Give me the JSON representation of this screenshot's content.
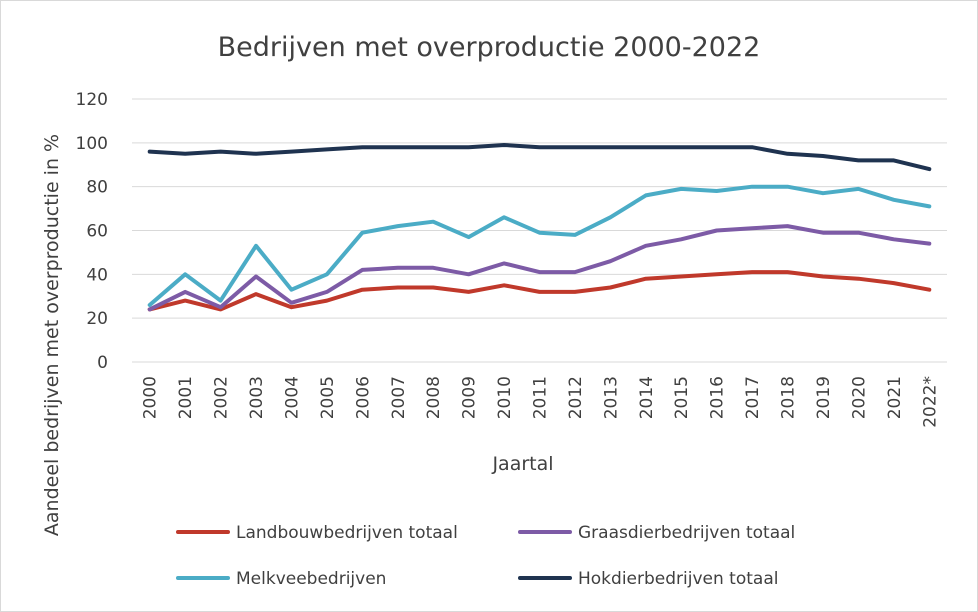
{
  "chart_data": {
    "type": "line",
    "title": "Bedrijven met overproductie 2000-2022",
    "xlabel": "Jaartal",
    "ylabel": "Aandeel bedrijven met overproductie in %",
    "ylim": [
      0,
      120
    ],
    "yticks": [
      0,
      20,
      40,
      60,
      80,
      100,
      120
    ],
    "grid": true,
    "legend_position": "bottom",
    "categories": [
      "2000",
      "2001",
      "2002",
      "2003",
      "2004",
      "2005",
      "2006",
      "2007",
      "2008",
      "2009",
      "2010",
      "2011",
      "2012",
      "2013",
      "2014",
      "2015",
      "2016",
      "2017",
      "2018",
      "2019",
      "2020",
      "2021",
      "2022*"
    ],
    "series": [
      {
        "name": "Landbouwbedrijven totaal",
        "color": "#c0392b",
        "values": [
          24,
          28,
          24,
          31,
          25,
          28,
          33,
          34,
          34,
          32,
          35,
          32,
          32,
          34,
          38,
          39,
          40,
          41,
          41,
          39,
          38,
          36,
          33
        ]
      },
      {
        "name": "Graasdierbedrijven totaal",
        "color": "#7d5ba6",
        "values": [
          24,
          32,
          25,
          39,
          27,
          32,
          42,
          43,
          43,
          40,
          45,
          41,
          41,
          46,
          53,
          56,
          60,
          61,
          62,
          59,
          59,
          56,
          54
        ]
      },
      {
        "name": "Melkveebedrijven",
        "color": "#4bacc6",
        "values": [
          26,
          40,
          28,
          53,
          33,
          40,
          59,
          62,
          64,
          57,
          66,
          59,
          58,
          66,
          76,
          79,
          78,
          80,
          80,
          77,
          79,
          74,
          71
        ]
      },
      {
        "name": "Hokdierbedrijven totaal",
        "color": "#1f3350",
        "values": [
          96,
          95,
          96,
          95,
          96,
          97,
          98,
          98,
          98,
          98,
          99,
          98,
          98,
          98,
          98,
          98,
          98,
          98,
          95,
          94,
          92,
          92,
          88
        ]
      }
    ]
  }
}
